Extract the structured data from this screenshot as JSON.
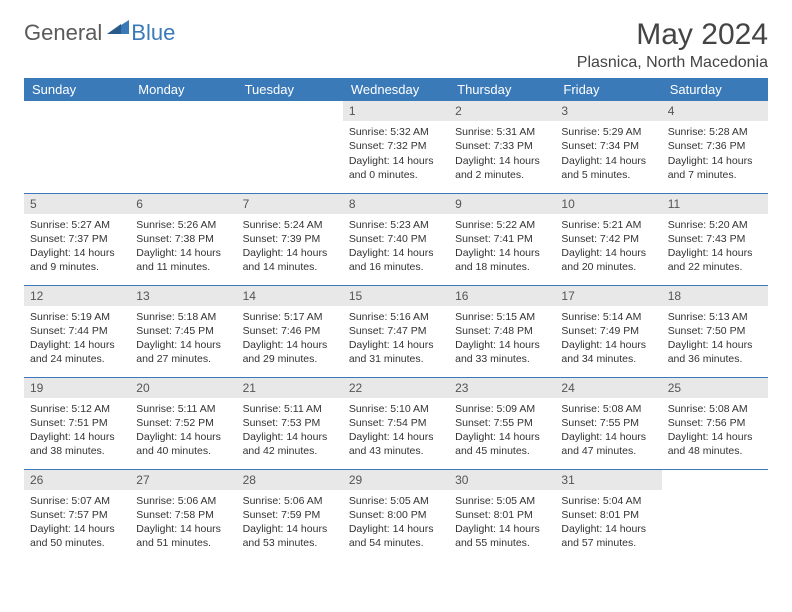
{
  "header": {
    "logo_general": "General",
    "logo_blue": "Blue",
    "month_title": "May 2024",
    "location": "Plasnica, North Macedonia"
  },
  "colors": {
    "header_bg": "#3a7ab8",
    "header_text": "#ffffff",
    "daynum_bg": "#e8e8e8",
    "row_border": "#3a7ab8",
    "page_bg": "#ffffff",
    "text": "#333333",
    "logo_gray": "#5a5a5a",
    "logo_blue": "#3a7ab8"
  },
  "weekdays": [
    "Sunday",
    "Monday",
    "Tuesday",
    "Wednesday",
    "Thursday",
    "Friday",
    "Saturday"
  ],
  "weeks": [
    [
      {
        "n": "",
        "sr": "",
        "ss": "",
        "dl1": "",
        "dl2": "",
        "empty": true
      },
      {
        "n": "",
        "sr": "",
        "ss": "",
        "dl1": "",
        "dl2": "",
        "empty": true
      },
      {
        "n": "",
        "sr": "",
        "ss": "",
        "dl1": "",
        "dl2": "",
        "empty": true
      },
      {
        "n": "1",
        "sr": "Sunrise: 5:32 AM",
        "ss": "Sunset: 7:32 PM",
        "dl1": "Daylight: 14 hours",
        "dl2": "and 0 minutes."
      },
      {
        "n": "2",
        "sr": "Sunrise: 5:31 AM",
        "ss": "Sunset: 7:33 PM",
        "dl1": "Daylight: 14 hours",
        "dl2": "and 2 minutes."
      },
      {
        "n": "3",
        "sr": "Sunrise: 5:29 AM",
        "ss": "Sunset: 7:34 PM",
        "dl1": "Daylight: 14 hours",
        "dl2": "and 5 minutes."
      },
      {
        "n": "4",
        "sr": "Sunrise: 5:28 AM",
        "ss": "Sunset: 7:36 PM",
        "dl1": "Daylight: 14 hours",
        "dl2": "and 7 minutes."
      }
    ],
    [
      {
        "n": "5",
        "sr": "Sunrise: 5:27 AM",
        "ss": "Sunset: 7:37 PM",
        "dl1": "Daylight: 14 hours",
        "dl2": "and 9 minutes."
      },
      {
        "n": "6",
        "sr": "Sunrise: 5:26 AM",
        "ss": "Sunset: 7:38 PM",
        "dl1": "Daylight: 14 hours",
        "dl2": "and 11 minutes."
      },
      {
        "n": "7",
        "sr": "Sunrise: 5:24 AM",
        "ss": "Sunset: 7:39 PM",
        "dl1": "Daylight: 14 hours",
        "dl2": "and 14 minutes."
      },
      {
        "n": "8",
        "sr": "Sunrise: 5:23 AM",
        "ss": "Sunset: 7:40 PM",
        "dl1": "Daylight: 14 hours",
        "dl2": "and 16 minutes."
      },
      {
        "n": "9",
        "sr": "Sunrise: 5:22 AM",
        "ss": "Sunset: 7:41 PM",
        "dl1": "Daylight: 14 hours",
        "dl2": "and 18 minutes."
      },
      {
        "n": "10",
        "sr": "Sunrise: 5:21 AM",
        "ss": "Sunset: 7:42 PM",
        "dl1": "Daylight: 14 hours",
        "dl2": "and 20 minutes."
      },
      {
        "n": "11",
        "sr": "Sunrise: 5:20 AM",
        "ss": "Sunset: 7:43 PM",
        "dl1": "Daylight: 14 hours",
        "dl2": "and 22 minutes."
      }
    ],
    [
      {
        "n": "12",
        "sr": "Sunrise: 5:19 AM",
        "ss": "Sunset: 7:44 PM",
        "dl1": "Daylight: 14 hours",
        "dl2": "and 24 minutes."
      },
      {
        "n": "13",
        "sr": "Sunrise: 5:18 AM",
        "ss": "Sunset: 7:45 PM",
        "dl1": "Daylight: 14 hours",
        "dl2": "and 27 minutes."
      },
      {
        "n": "14",
        "sr": "Sunrise: 5:17 AM",
        "ss": "Sunset: 7:46 PM",
        "dl1": "Daylight: 14 hours",
        "dl2": "and 29 minutes."
      },
      {
        "n": "15",
        "sr": "Sunrise: 5:16 AM",
        "ss": "Sunset: 7:47 PM",
        "dl1": "Daylight: 14 hours",
        "dl2": "and 31 minutes."
      },
      {
        "n": "16",
        "sr": "Sunrise: 5:15 AM",
        "ss": "Sunset: 7:48 PM",
        "dl1": "Daylight: 14 hours",
        "dl2": "and 33 minutes."
      },
      {
        "n": "17",
        "sr": "Sunrise: 5:14 AM",
        "ss": "Sunset: 7:49 PM",
        "dl1": "Daylight: 14 hours",
        "dl2": "and 34 minutes."
      },
      {
        "n": "18",
        "sr": "Sunrise: 5:13 AM",
        "ss": "Sunset: 7:50 PM",
        "dl1": "Daylight: 14 hours",
        "dl2": "and 36 minutes."
      }
    ],
    [
      {
        "n": "19",
        "sr": "Sunrise: 5:12 AM",
        "ss": "Sunset: 7:51 PM",
        "dl1": "Daylight: 14 hours",
        "dl2": "and 38 minutes."
      },
      {
        "n": "20",
        "sr": "Sunrise: 5:11 AM",
        "ss": "Sunset: 7:52 PM",
        "dl1": "Daylight: 14 hours",
        "dl2": "and 40 minutes."
      },
      {
        "n": "21",
        "sr": "Sunrise: 5:11 AM",
        "ss": "Sunset: 7:53 PM",
        "dl1": "Daylight: 14 hours",
        "dl2": "and 42 minutes."
      },
      {
        "n": "22",
        "sr": "Sunrise: 5:10 AM",
        "ss": "Sunset: 7:54 PM",
        "dl1": "Daylight: 14 hours",
        "dl2": "and 43 minutes."
      },
      {
        "n": "23",
        "sr": "Sunrise: 5:09 AM",
        "ss": "Sunset: 7:55 PM",
        "dl1": "Daylight: 14 hours",
        "dl2": "and 45 minutes."
      },
      {
        "n": "24",
        "sr": "Sunrise: 5:08 AM",
        "ss": "Sunset: 7:55 PM",
        "dl1": "Daylight: 14 hours",
        "dl2": "and 47 minutes."
      },
      {
        "n": "25",
        "sr": "Sunrise: 5:08 AM",
        "ss": "Sunset: 7:56 PM",
        "dl1": "Daylight: 14 hours",
        "dl2": "and 48 minutes."
      }
    ],
    [
      {
        "n": "26",
        "sr": "Sunrise: 5:07 AM",
        "ss": "Sunset: 7:57 PM",
        "dl1": "Daylight: 14 hours",
        "dl2": "and 50 minutes."
      },
      {
        "n": "27",
        "sr": "Sunrise: 5:06 AM",
        "ss": "Sunset: 7:58 PM",
        "dl1": "Daylight: 14 hours",
        "dl2": "and 51 minutes."
      },
      {
        "n": "28",
        "sr": "Sunrise: 5:06 AM",
        "ss": "Sunset: 7:59 PM",
        "dl1": "Daylight: 14 hours",
        "dl2": "and 53 minutes."
      },
      {
        "n": "29",
        "sr": "Sunrise: 5:05 AM",
        "ss": "Sunset: 8:00 PM",
        "dl1": "Daylight: 14 hours",
        "dl2": "and 54 minutes."
      },
      {
        "n": "30",
        "sr": "Sunrise: 5:05 AM",
        "ss": "Sunset: 8:01 PM",
        "dl1": "Daylight: 14 hours",
        "dl2": "and 55 minutes."
      },
      {
        "n": "31",
        "sr": "Sunrise: 5:04 AM",
        "ss": "Sunset: 8:01 PM",
        "dl1": "Daylight: 14 hours",
        "dl2": "and 57 minutes."
      },
      {
        "n": "",
        "sr": "",
        "ss": "",
        "dl1": "",
        "dl2": "",
        "empty": true
      }
    ]
  ]
}
